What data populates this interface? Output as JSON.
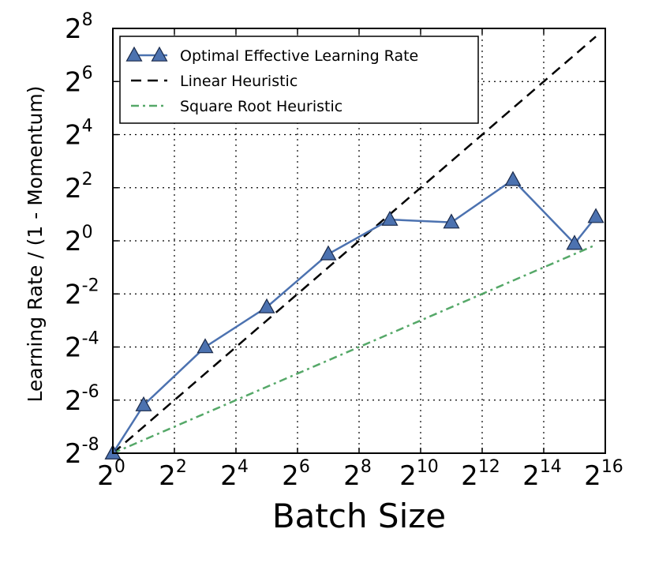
{
  "chart_data": {
    "type": "line",
    "xlabel": "Batch Size",
    "ylabel": "Learning Rate / (1 - Momentum)",
    "x_scale": "log2",
    "y_scale": "log2",
    "xlim": [
      1,
      65536
    ],
    "ylim": [
      0.00390625,
      256
    ],
    "x_ticks": [
      {
        "value": 1,
        "base": "2",
        "exp": "0"
      },
      {
        "value": 4,
        "base": "2",
        "exp": "2"
      },
      {
        "value": 16,
        "base": "2",
        "exp": "4"
      },
      {
        "value": 64,
        "base": "2",
        "exp": "6"
      },
      {
        "value": 256,
        "base": "2",
        "exp": "8"
      },
      {
        "value": 1024,
        "base": "2",
        "exp": "10"
      },
      {
        "value": 4096,
        "base": "2",
        "exp": "12"
      },
      {
        "value": 16384,
        "base": "2",
        "exp": "14"
      },
      {
        "value": 65536,
        "base": "2",
        "exp": "16"
      }
    ],
    "y_ticks": [
      {
        "value": 0.00390625,
        "base": "2",
        "exp": "-8"
      },
      {
        "value": 0.015625,
        "base": "2",
        "exp": "-6"
      },
      {
        "value": 0.0625,
        "base": "2",
        "exp": "-4"
      },
      {
        "value": 0.25,
        "base": "2",
        "exp": "-2"
      },
      {
        "value": 1,
        "base": "2",
        "exp": "0"
      },
      {
        "value": 4,
        "base": "2",
        "exp": "2"
      },
      {
        "value": 16,
        "base": "2",
        "exp": "4"
      },
      {
        "value": 64,
        "base": "2",
        "exp": "6"
      },
      {
        "value": 256,
        "base": "2",
        "exp": "8"
      }
    ],
    "grid": true,
    "legend_position": "top-left",
    "series": [
      {
        "name": "Optimal Effective Learning Rate",
        "style": "solid",
        "marker": "triangle",
        "color": "#4c72b0",
        "marker_fill": "#4c72b0",
        "x": [
          1,
          2,
          8,
          32,
          128,
          512,
          2048,
          8192,
          32768,
          53000
        ],
        "y": [
          0.0039,
          0.0137,
          0.0625,
          0.177,
          0.707,
          1.74,
          1.62,
          4.92,
          0.93,
          1.87
        ]
      },
      {
        "name": "Linear Heuristic",
        "style": "dashed",
        "marker": "none",
        "color": "#000000",
        "x": [
          1,
          53000
        ],
        "y": [
          0.0039,
          207
        ]
      },
      {
        "name": "Square Root Heuristic",
        "style": "dashdot",
        "marker": "none",
        "color": "#55a868",
        "x": [
          1,
          53000
        ],
        "y": [
          0.0039,
          0.9
        ]
      }
    ]
  }
}
